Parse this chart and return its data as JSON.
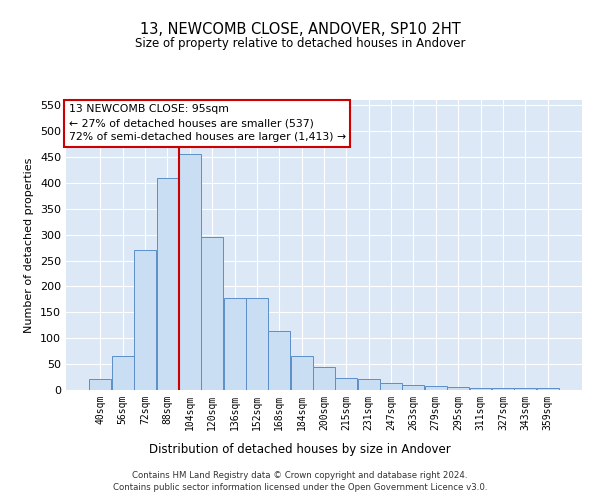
{
  "title": "13, NEWCOMB CLOSE, ANDOVER, SP10 2HT",
  "subtitle": "Size of property relative to detached houses in Andover",
  "xlabel": "Distribution of detached houses by size in Andover",
  "ylabel": "Number of detached properties",
  "bin_labels": [
    "40sqm",
    "56sqm",
    "72sqm",
    "88sqm",
    "104sqm",
    "120sqm",
    "136sqm",
    "152sqm",
    "168sqm",
    "184sqm",
    "200sqm",
    "215sqm",
    "231sqm",
    "247sqm",
    "263sqm",
    "279sqm",
    "295sqm",
    "311sqm",
    "327sqm",
    "343sqm",
    "359sqm"
  ],
  "bar_heights": [
    22,
    65,
    270,
    410,
    455,
    295,
    178,
    178,
    113,
    65,
    44,
    24,
    22,
    13,
    10,
    7,
    5,
    4,
    3,
    4,
    3
  ],
  "bar_color": "#c9ddf3",
  "bar_edge_color": "#5b8ec9",
  "red_line_x": 3.5,
  "annotation_line1": "13 NEWCOMB CLOSE: 95sqm",
  "annotation_line2": "← 27% of detached houses are smaller (537)",
  "annotation_line3": "72% of semi-detached houses are larger (1,413) →",
  "annotation_box_color": "#ffffff",
  "annotation_box_edge_color": "#cc0000",
  "ylim": [
    0,
    560
  ],
  "yticks": [
    0,
    50,
    100,
    150,
    200,
    250,
    300,
    350,
    400,
    450,
    500,
    550
  ],
  "background_color": "#dce8f5",
  "footer_line1": "Contains HM Land Registry data © Crown copyright and database right 2024.",
  "footer_line2": "Contains public sector information licensed under the Open Government Licence v3.0."
}
